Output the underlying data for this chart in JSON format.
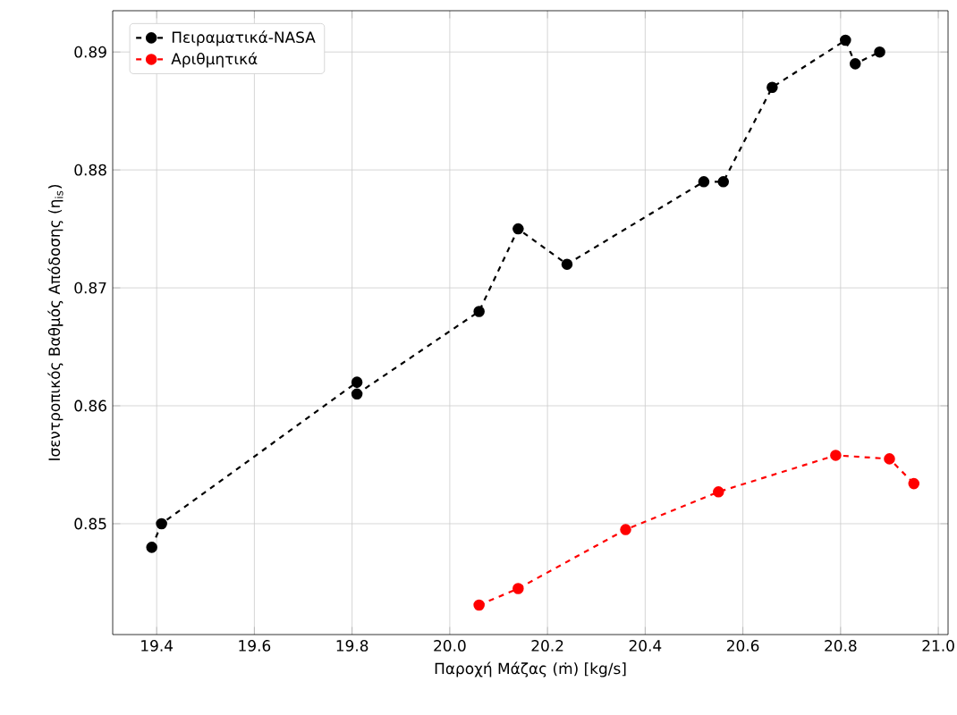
{
  "chart_data": {
    "type": "line",
    "xlabel": "Παροχή Μάζας (ṁ) [kg/s]",
    "ylabel": "Ισεντροπικός Βαθμός Απόδοσης (η$_{is}$)",
    "xlim": [
      19.31,
      21.02
    ],
    "ylim": [
      0.8406,
      0.8935
    ],
    "xticks": [
      {
        "value": 19.4,
        "label": "19.4"
      },
      {
        "value": 19.6,
        "label": "19.6"
      },
      {
        "value": 19.8,
        "label": "19.8"
      },
      {
        "value": 20.0,
        "label": "20.0"
      },
      {
        "value": 20.2,
        "label": "20.2"
      },
      {
        "value": 20.4,
        "label": "20.4"
      },
      {
        "value": 20.6,
        "label": "20.6"
      },
      {
        "value": 20.8,
        "label": "20.8"
      },
      {
        "value": 21.0,
        "label": "21.0"
      }
    ],
    "yticks": [
      0.85,
      0.86,
      0.87,
      0.88,
      0.89
    ],
    "grid": true,
    "legend": "top left",
    "marker": "circle",
    "line_style": "dashed",
    "series": [
      {
        "name": "Πειραματικά-NASA",
        "color": "#000000",
        "x": [
          19.39,
          19.41,
          19.81,
          19.81,
          20.06,
          20.14,
          20.24,
          20.52,
          20.56,
          20.66,
          20.81,
          20.83,
          20.88
        ],
        "values": [
          0.848,
          0.85,
          0.862,
          0.861,
          0.868,
          0.875,
          0.872,
          0.879,
          0.879,
          0.887,
          0.891,
          0.889,
          0.89
        ]
      },
      {
        "name": "Αριθμητικά",
        "color": "#ff0000",
        "x": [
          20.06,
          20.14,
          20.36,
          20.55,
          20.79,
          20.9,
          20.95
        ],
        "values": [
          0.8431,
          0.8445,
          0.8495,
          0.8527,
          0.8558,
          0.8555,
          0.8534
        ]
      }
    ]
  }
}
